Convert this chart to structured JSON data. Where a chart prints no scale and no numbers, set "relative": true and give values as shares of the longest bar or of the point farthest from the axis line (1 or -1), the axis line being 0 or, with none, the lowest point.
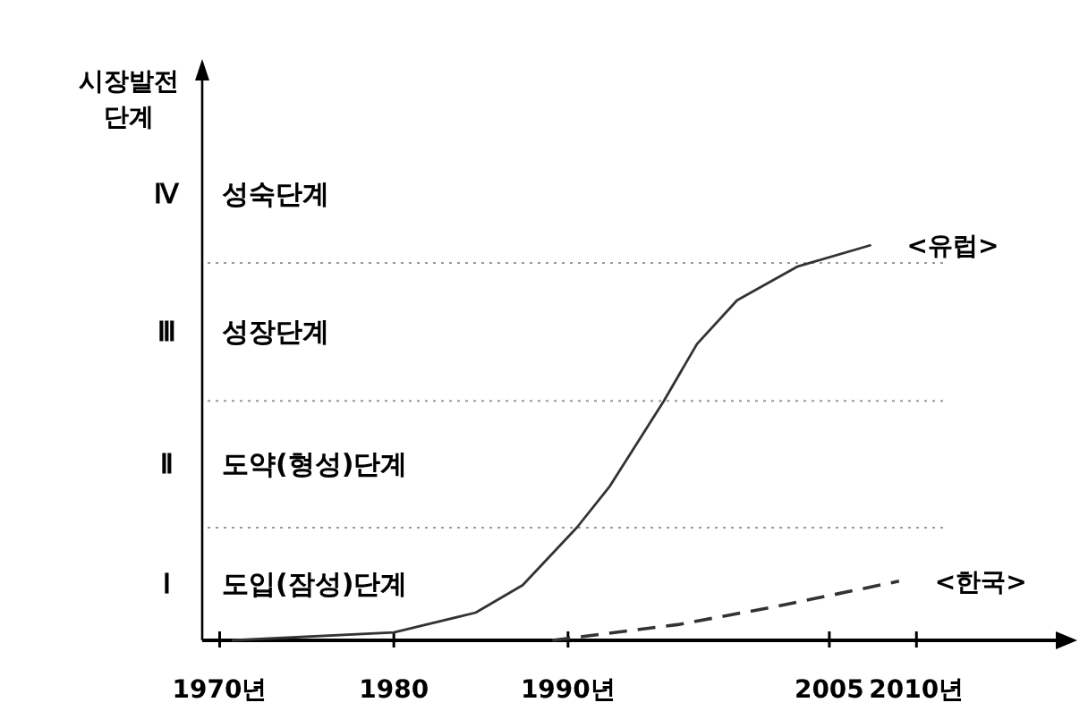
{
  "chart_data": {
    "type": "line",
    "relative": true,
    "ylabel": "시장발전\n단계",
    "xlim": [
      1969,
      2018
    ],
    "xticks": [
      {
        "value": 1970,
        "label": "1970년"
      },
      1980,
      {
        "value": 1990,
        "label": "1990년"
      },
      2005,
      {
        "value": 2010,
        "label": "2010년"
      }
    ],
    "series": [
      {
        "name": "<유럽>",
        "color": "#333333",
        "line_style": "solid",
        "x": [
          1970.7,
          1980,
          1984.7,
          1987.4,
          1990.5,
          1992.4,
          1995.5,
          1997.4,
          1999.7,
          2003.2,
          2007.4
        ],
        "values": [
          0,
          0.02,
          0.07,
          0.14,
          0.285,
          0.39,
          0.606,
          0.75,
          0.86,
          0.946,
          1
        ]
      },
      {
        "name": "<한국>",
        "color": "#333333",
        "line_style": "dashed",
        "x": [
          1989.1,
          1996.3,
          2002,
          2009
        ],
        "values": [
          0,
          0.04,
          0.086,
          0.15
        ]
      }
    ],
    "ref_lines": [
      {
        "axis": "y",
        "value": 0.285,
        "color": "#999999",
        "line_style": "dotted"
      },
      {
        "axis": "y",
        "value": 0.606,
        "color": "#999999",
        "line_style": "dotted"
      },
      {
        "axis": "y",
        "value": 0.955,
        "color": "#999999",
        "line_style": "dotted"
      }
    ],
    "annotations": [
      "Ⅰ 도입(잠성)단계",
      "Ⅱ 도약(형성)단계",
      "Ⅲ 성장단계",
      "Ⅳ 성숙단계"
    ],
    "legend": false
  }
}
